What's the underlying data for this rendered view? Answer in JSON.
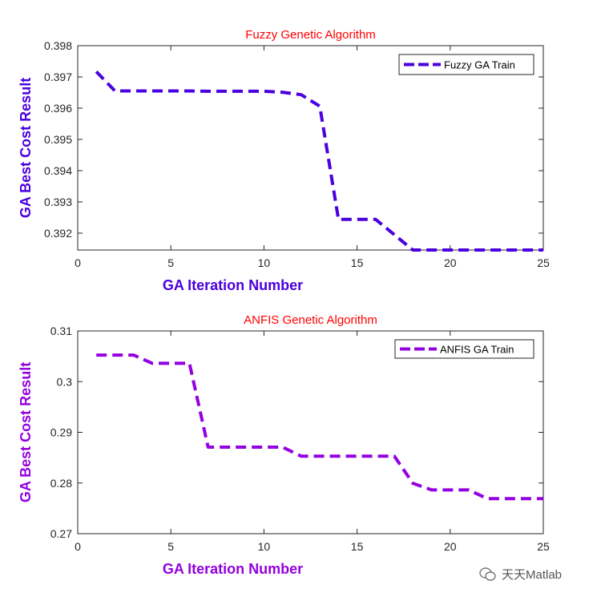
{
  "chart_data": [
    {
      "type": "line",
      "title": "Fuzzy Genetic Algorithm",
      "xlabel": "GA Iteration Number",
      "ylabel": "GA Best Cost Result",
      "xlim": [
        0,
        25
      ],
      "ylim": [
        0.39146,
        0.398
      ],
      "xticks": [
        "0",
        "5",
        "10",
        "15",
        "20",
        "25"
      ],
      "xtick_values": [
        0,
        5,
        10,
        15,
        20,
        25
      ],
      "yticks": [
        "0.392",
        "0.393",
        "0.394",
        "0.395",
        "0.396",
        "0.397",
        "0.398"
      ],
      "ytick_values": [
        0.392,
        0.393,
        0.394,
        0.395,
        0.396,
        0.397,
        0.398
      ],
      "legend_position": "top-right",
      "grid": false,
      "series": [
        {
          "name": "Fuzzy GA Train",
          "color": "#4b00e0",
          "x": [
            1,
            2,
            3,
            4,
            5,
            6,
            7,
            8,
            9,
            10,
            11,
            12,
            13,
            14,
            15,
            16,
            17,
            18,
            19,
            20,
            21,
            22,
            23,
            24,
            25
          ],
          "values": [
            0.39717,
            0.39655,
            0.39655,
            0.39655,
            0.39655,
            0.39655,
            0.39654,
            0.39654,
            0.39654,
            0.39654,
            0.39651,
            0.39643,
            0.39606,
            0.39244,
            0.39244,
            0.39244,
            0.39195,
            0.39146,
            0.39146,
            0.39146,
            0.39146,
            0.39146,
            0.39146,
            0.39146,
            0.39146
          ]
        }
      ]
    },
    {
      "type": "line",
      "title": "ANFIS Genetic Algorithm",
      "xlabel": "GA Iteration Number",
      "ylabel": "GA Best Cost Result",
      "xlim": [
        0,
        25
      ],
      "ylim": [
        0.27,
        0.31
      ],
      "xticks": [
        "0",
        "5",
        "10",
        "15",
        "20",
        "25"
      ],
      "xtick_values": [
        0,
        5,
        10,
        15,
        20,
        25
      ],
      "yticks": [
        "0.27",
        "0.28",
        "0.29",
        "0.3",
        "0.31"
      ],
      "ytick_values": [
        0.27,
        0.28,
        0.29,
        0.3,
        0.31
      ],
      "legend_position": "top-right",
      "grid": false,
      "series": [
        {
          "name": "ANFIS GA Train",
          "color": "#9400e0",
          "x": [
            1,
            2,
            3,
            4,
            5,
            6,
            7,
            8,
            9,
            10,
            11,
            12,
            13,
            14,
            15,
            16,
            17,
            18,
            19,
            20,
            21,
            22,
            23,
            24,
            25
          ],
          "values": [
            0.30524,
            0.30524,
            0.30524,
            0.30361,
            0.30361,
            0.30361,
            0.28707,
            0.28707,
            0.28707,
            0.28707,
            0.28707,
            0.28529,
            0.28529,
            0.28529,
            0.28529,
            0.28529,
            0.28529,
            0.27995,
            0.27864,
            0.27864,
            0.27864,
            0.27691,
            0.27691,
            0.27691,
            0.27691
          ]
        }
      ]
    }
  ],
  "watermark": {
    "text": "天天Matlab"
  },
  "title_color": "#ff0000"
}
